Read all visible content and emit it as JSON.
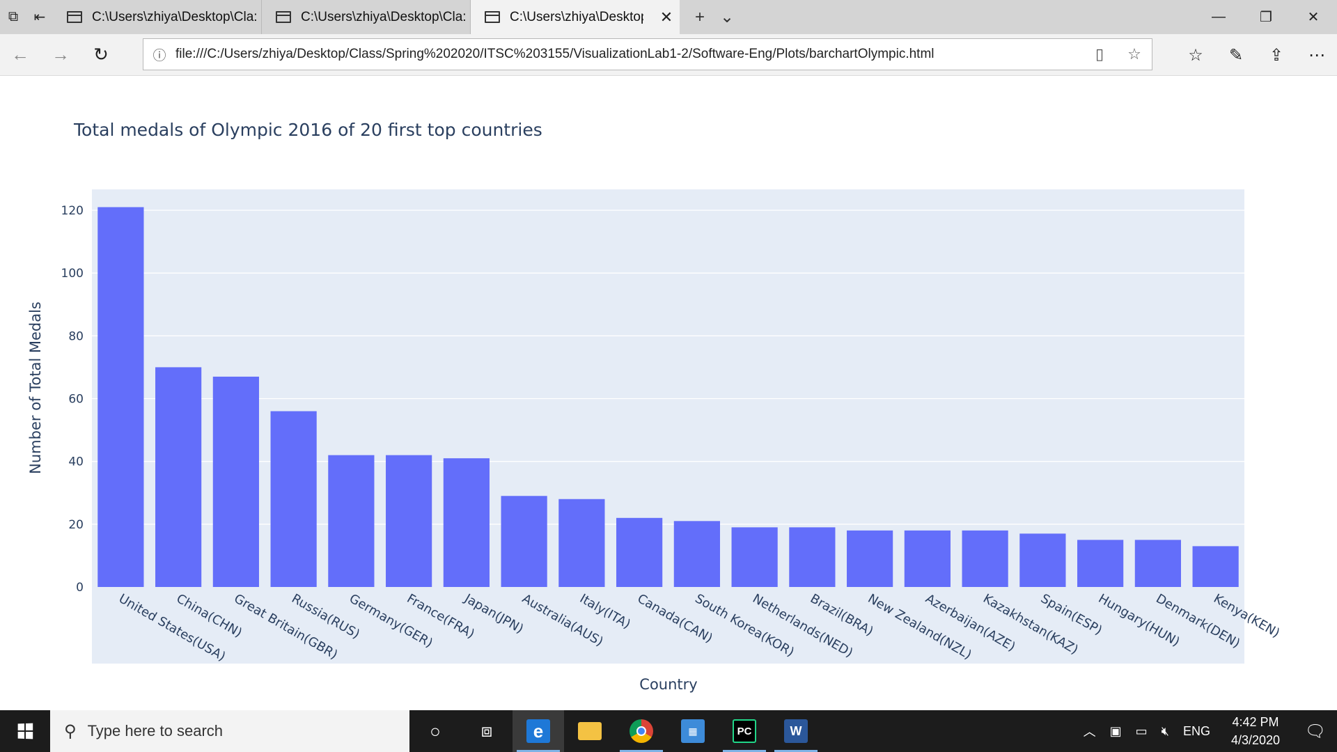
{
  "browser": {
    "tabs": [
      {
        "title": "C:\\Users\\zhiya\\Desktop\\Cla:"
      },
      {
        "title": "C:\\Users\\zhiya\\Desktop\\Cla:"
      },
      {
        "title": "C:\\Users\\zhiya\\Desktop'"
      }
    ],
    "url": "file:///C:/Users/zhiya/Desktop/Class/Spring%202020/ITSC%203155/VisualizationLab1-2/Software-Eng/Plots/barchartOlympic.html"
  },
  "chart_data": {
    "type": "bar",
    "title": "Total medals of Olympic 2016 of 20 first top countries",
    "xlabel": "Country",
    "ylabel": "Number of Total Medals",
    "ylim": [
      0,
      121
    ],
    "yticks": [
      0,
      20,
      40,
      60,
      80,
      100,
      120
    ],
    "grid": true,
    "bar_color": "#636efa",
    "plot_bgcolor": "#e5ecf6",
    "categories": [
      "United States(USA)",
      "China(CHN)",
      "Great Britain(GBR)",
      "Russia(RUS)",
      "Germany(GER)",
      "France(FRA)",
      "Japan(JPN)",
      "Australia(AUS)",
      "Italy(ITA)",
      "Canada(CAN)",
      "South Korea(KOR)",
      "Netherlands(NED)",
      "Brazil(BRA)",
      "New Zealand(NZL)",
      "Azerbaijan(AZE)",
      "Kazakhstan(KAZ)",
      "Spain(ESP)",
      "Hungary(HUN)",
      "Denmark(DEN)",
      "Kenya(KEN)"
    ],
    "values": [
      121,
      70,
      67,
      56,
      42,
      42,
      41,
      29,
      28,
      22,
      21,
      19,
      19,
      18,
      18,
      18,
      17,
      15,
      15,
      13
    ]
  },
  "taskbar": {
    "search_placeholder": "Type here to search",
    "language": "ENG",
    "time": "4:42 PM",
    "date": "4/3/2020",
    "apps": [
      "edge",
      "file-explorer",
      "chrome",
      "control-panel",
      "pycharm",
      "word"
    ]
  }
}
